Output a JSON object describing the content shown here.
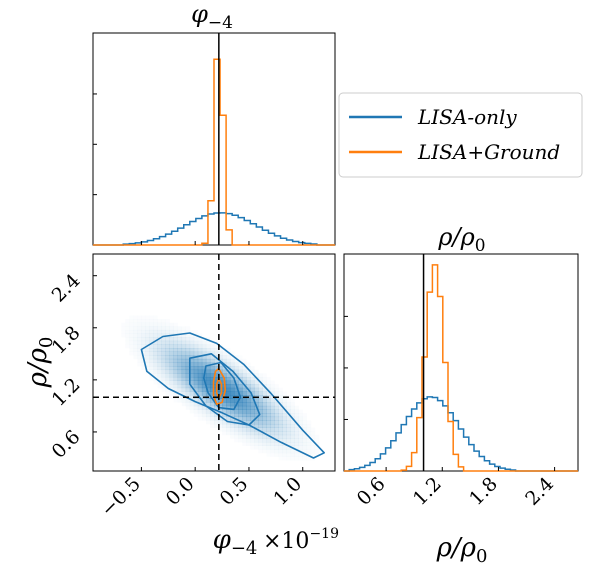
{
  "colors": {
    "lisa_only": "#1f77b4",
    "lisa_ground": "#ff7f0e",
    "truth": "#000000",
    "contour_fill": "#1f77b4"
  },
  "chart_data": [
    {
      "id": "marginal_phi",
      "type": "step",
      "title": "φ₋₄",
      "xlim": [
        -0.95,
        1.3
      ],
      "truth_x": 0.22,
      "series": [
        {
          "name": "LISA-only",
          "kind": "hist",
          "bins": 40,
          "center": 0.24,
          "sigma": 0.33,
          "relative_height": 0.16
        },
        {
          "name": "LISA+Ground",
          "kind": "hist",
          "bins": 40,
          "center": 0.22,
          "sigma": 0.042,
          "relative_height": 1.0
        }
      ]
    },
    {
      "id": "joint_phi_rho",
      "type": "contour",
      "xlabel": "φ₋₄",
      "x_multiplier": "×10⁻¹⁹",
      "ylabel": "ρ/ρ₀",
      "xlim": [
        -0.95,
        1.3
      ],
      "ylim": [
        0.15,
        2.65
      ],
      "xticks": [
        "−0.5",
        "0.0",
        "0.5",
        "1.0"
      ],
      "xtick_values": [
        -0.5,
        0.0,
        0.5,
        1.0
      ],
      "yticks": [
        "0.6",
        "1.2",
        "1.8",
        "2.4"
      ],
      "ytick_values": [
        0.6,
        1.2,
        1.8,
        2.4
      ],
      "truth": {
        "x": 0.22,
        "y": 1.0
      },
      "contours": [
        {
          "series": "LISA-only",
          "level": "outer",
          "points": [
            [
              -0.5,
              1.55
            ],
            [
              -0.3,
              1.7
            ],
            [
              -0.05,
              1.74
            ],
            [
              0.2,
              1.62
            ],
            [
              0.45,
              1.38
            ],
            [
              0.7,
              1.05
            ],
            [
              1.0,
              0.62
            ],
            [
              1.2,
              0.36
            ],
            [
              1.1,
              0.3
            ],
            [
              0.8,
              0.48
            ],
            [
              0.5,
              0.68
            ],
            [
              0.25,
              0.82
            ],
            [
              0.0,
              0.95
            ],
            [
              -0.25,
              1.1
            ],
            [
              -0.45,
              1.3
            ]
          ]
        },
        {
          "series": "LISA-only",
          "level": "middle",
          "points": [
            [
              -0.05,
              1.45
            ],
            [
              0.15,
              1.5
            ],
            [
              0.35,
              1.3
            ],
            [
              0.52,
              1.05
            ],
            [
              0.6,
              0.8
            ],
            [
              0.5,
              0.68
            ],
            [
              0.3,
              0.72
            ],
            [
              0.1,
              0.9
            ],
            [
              -0.05,
              1.15
            ]
          ]
        },
        {
          "series": "LISA-only",
          "level": "inner",
          "points": [
            [
              0.1,
              1.36
            ],
            [
              0.24,
              1.4
            ],
            [
              0.36,
              1.22
            ],
            [
              0.42,
              1.0
            ],
            [
              0.36,
              0.86
            ],
            [
              0.22,
              0.88
            ],
            [
              0.12,
              1.05
            ],
            [
              0.08,
              1.22
            ]
          ]
        },
        {
          "series": "LISA+Ground",
          "level": "outer",
          "points": [
            [
              0.22,
              1.33
            ],
            [
              0.27,
              1.22
            ],
            [
              0.28,
              1.08
            ],
            [
              0.25,
              0.94
            ],
            [
              0.2,
              0.92
            ],
            [
              0.17,
              1.02
            ],
            [
              0.17,
              1.18
            ],
            [
              0.19,
              1.3
            ]
          ]
        },
        {
          "series": "LISA+Ground",
          "level": "inner",
          "points": [
            [
              0.22,
              1.22
            ],
            [
              0.245,
              1.15
            ],
            [
              0.245,
              1.05
            ],
            [
              0.22,
              0.99
            ],
            [
              0.2,
              1.05
            ],
            [
              0.2,
              1.15
            ]
          ]
        }
      ]
    },
    {
      "id": "marginal_rho",
      "type": "step",
      "title": "ρ/ρ₀",
      "xlabel": "ρ/ρ₀",
      "xlim": [
        0.15,
        2.65
      ],
      "xticks": [
        "0.6",
        "1.2",
        "1.8",
        "2.4"
      ],
      "xtick_values": [
        0.6,
        1.2,
        1.8,
        2.4
      ],
      "truth_x": 1.0,
      "series": [
        {
          "name": "LISA-only",
          "kind": "hist",
          "bins": 45,
          "center": 1.08,
          "sigma": 0.3,
          "relative_height": 0.36
        },
        {
          "name": "LISA+Ground",
          "kind": "hist",
          "bins": 45,
          "center": 1.12,
          "sigma": 0.1,
          "relative_height": 1.0
        }
      ]
    }
  ],
  "legend": {
    "entries": [
      {
        "label": "LISA-only",
        "color": "#1f77b4"
      },
      {
        "label": "LISA+Ground",
        "color": "#ff7f0e"
      }
    ]
  },
  "labels": {
    "top_title_main": "φ",
    "top_title_sub": "−4",
    "rho_title": "ρ/ρ",
    "rho_title_sub": "0",
    "x_label_main": "φ",
    "x_label_sub": "−4",
    "x_multiplier": "×10",
    "x_multiplier_exp": "−19",
    "y_label": "ρ/ρ",
    "y_label_sub": "0",
    "rho_xlabel": "ρ/ρ",
    "rho_xlabel_sub": "0"
  }
}
